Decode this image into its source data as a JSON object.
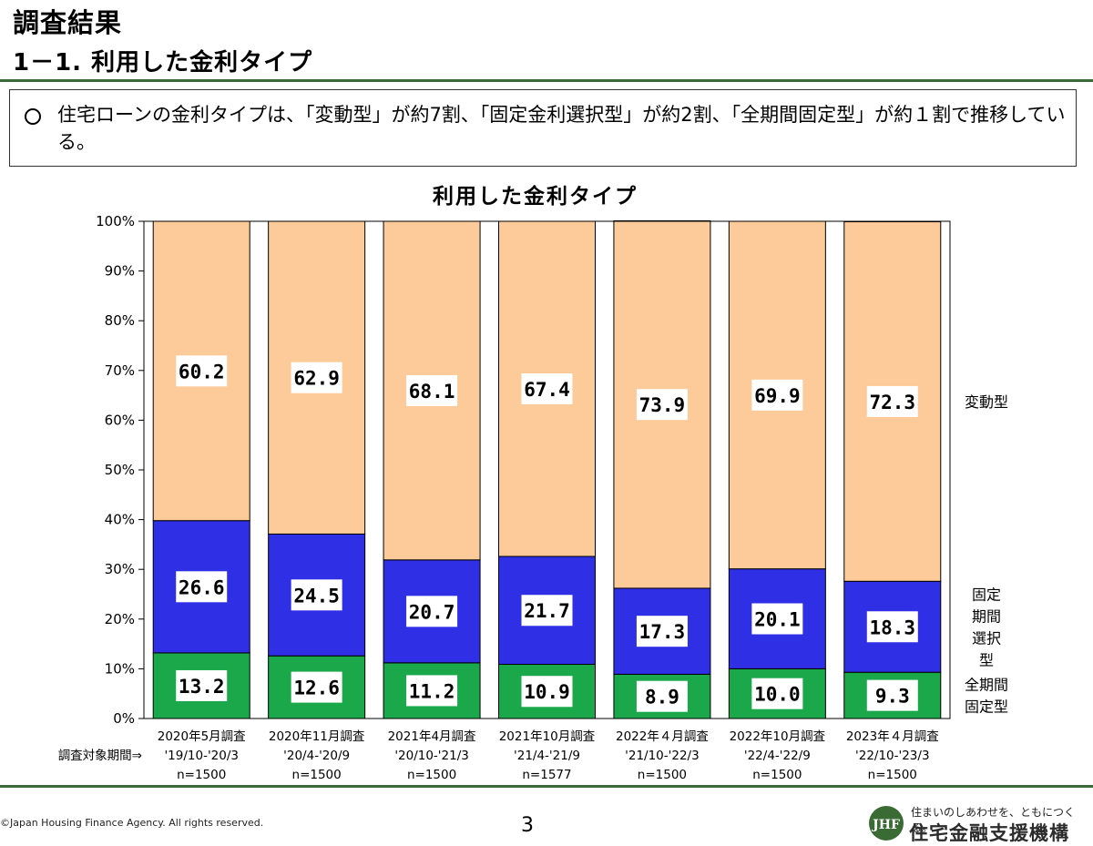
{
  "header": {
    "page_title": "調査結果",
    "section_title": "1－1. 利用した金利タイプ"
  },
  "summary": {
    "text": "住宅ローンの金利タイプは、「変動型」が約7割、「固定金利選択型」が約2割、「全期間固定型」が約１割で推移している。"
  },
  "chart_data": {
    "type": "bar",
    "stacked": true,
    "title": "利用した金利タイプ",
    "yticks": [
      "0%",
      "10%",
      "20%",
      "30%",
      "40%",
      "50%",
      "60%",
      "70%",
      "80%",
      "90%",
      "100%"
    ],
    "ylim": [
      0,
      100
    ],
    "categories": [
      {
        "survey": "2020年5月調査",
        "period": "'19/10-'20/3",
        "n": "n=1500"
      },
      {
        "survey": "2020年11月調査",
        "period": "'20/4-'20/9",
        "n": "n=1500"
      },
      {
        "survey": "2021年4月調査",
        "period": "'20/10-'21/3",
        "n": "n=1500"
      },
      {
        "survey": "2021年10月調査",
        "period": "'21/4-'21/9",
        "n": "n=1577"
      },
      {
        "survey": "2022年４月調査",
        "period": "'21/10-'22/3",
        "n": "n=1500"
      },
      {
        "survey": "2022年10月調査",
        "period": "'22/4-'22/9",
        "n": "n=1500"
      },
      {
        "survey": "2023年４月調査",
        "period": "'22/10-'23/3",
        "n": "n=1500"
      }
    ],
    "period_prefix": "調査対象期間⇒",
    "series": [
      {
        "name": "全期間固定型",
        "color": "#1aa84a",
        "values": [
          13.2,
          12.6,
          11.2,
          10.9,
          8.9,
          10.0,
          9.3
        ],
        "labels": [
          "13.2",
          "12.6",
          "11.2",
          "10.9",
          "8.9",
          "10.0",
          "9.3"
        ]
      },
      {
        "name": "固定期間選択型",
        "color": "#2f2fe6",
        "values": [
          26.6,
          24.5,
          20.7,
          21.7,
          17.3,
          20.1,
          18.3
        ],
        "labels": [
          "26.6",
          "24.5",
          "20.7",
          "21.7",
          "17.3",
          "20.1",
          "18.3"
        ]
      },
      {
        "name": "変動型",
        "color": "#fdca99",
        "values": [
          60.2,
          62.9,
          68.1,
          67.4,
          73.9,
          69.9,
          72.3
        ],
        "labels": [
          "60.2",
          "62.9",
          "68.1",
          "67.4",
          "73.9",
          "69.9",
          "72.3"
        ]
      }
    ],
    "legend": [
      {
        "lines": [
          "変動型"
        ]
      },
      {
        "lines": [
          "固定",
          "期間",
          "選択",
          "型"
        ]
      },
      {
        "lines": [
          "全期間",
          "固定型"
        ]
      }
    ],
    "legend_position": "right",
    "grid": false
  },
  "footer": {
    "copyright": "©Japan Housing Finance Agency. All rights reserved.",
    "page_number": "3",
    "tagline": "住まいのしあわせを、ともにつくる。",
    "org_name": "住宅金融支援機構",
    "logo_text": "JHF",
    "logo_color": "#3a6b35"
  }
}
